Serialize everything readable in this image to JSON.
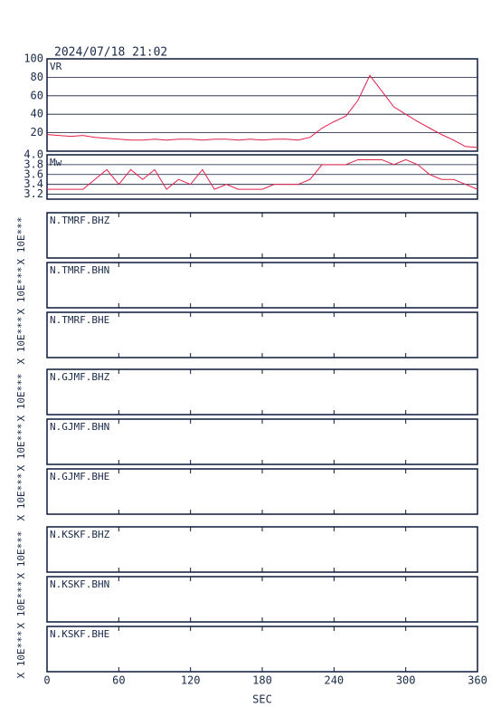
{
  "chart_data": [
    {
      "type": "line",
      "title": "2024/07/18 21:02",
      "label": "VR",
      "x": [
        0,
        10,
        20,
        30,
        40,
        50,
        60,
        70,
        80,
        90,
        100,
        110,
        120,
        130,
        140,
        150,
        160,
        170,
        180,
        190,
        200,
        210,
        220,
        230,
        240,
        250,
        260,
        270,
        280,
        290,
        300,
        310,
        320,
        330,
        340,
        350,
        360
      ],
      "series": [
        {
          "color": "#e0204a",
          "values": [
            18,
            17,
            16,
            17,
            15,
            14,
            13,
            12,
            12,
            13,
            12,
            13,
            13,
            12,
            13,
            13,
            12,
            13,
            12,
            13,
            13,
            12,
            15,
            25,
            32,
            38,
            55,
            82,
            65,
            48,
            40,
            32,
            25,
            18,
            12,
            5,
            4
          ]
        }
      ],
      "xlim": [
        0,
        360
      ],
      "ylim": [
        0,
        100
      ],
      "yticks": [
        20,
        40,
        60,
        80,
        100
      ],
      "grid": true
    },
    {
      "type": "line",
      "label": "Mw",
      "x": [
        0,
        10,
        20,
        30,
        40,
        50,
        60,
        70,
        80,
        90,
        100,
        110,
        120,
        130,
        140,
        150,
        160,
        170,
        180,
        190,
        200,
        210,
        220,
        230,
        240,
        250,
        260,
        270,
        280,
        290,
        300,
        310,
        320,
        330,
        340,
        350,
        360
      ],
      "series": [
        {
          "color": "#e0204a",
          "values": [
            3.3,
            3.3,
            3.3,
            3.3,
            3.5,
            3.7,
            3.4,
            3.7,
            3.5,
            3.7,
            3.3,
            3.5,
            3.4,
            3.7,
            3.3,
            3.4,
            3.3,
            3.3,
            3.3,
            3.4,
            3.4,
            3.4,
            3.5,
            3.8,
            3.8,
            3.8,
            3.9,
            3.9,
            3.9,
            3.8,
            3.9,
            3.8,
            3.6,
            3.5,
            3.5,
            3.4,
            3.3
          ]
        }
      ],
      "xlim": [
        0,
        360
      ],
      "ylim": [
        3.1,
        4.0
      ],
      "yticks": [
        {
          "value": 4.0,
          "label": "4.0"
        },
        3.8,
        3.6,
        3.4,
        3.2
      ],
      "grid": true
    },
    {
      "type": "waveform",
      "label": "N.TMRF.BHZ",
      "ylabel": "X 10E***",
      "xlim": [
        0,
        360
      ],
      "xticks": [
        0,
        60,
        120,
        180,
        240,
        300,
        360
      ]
    },
    {
      "type": "waveform",
      "label": "N.TMRF.BHN",
      "ylabel": "X 10E***",
      "xlim": [
        0,
        360
      ],
      "xticks": [
        0,
        60,
        120,
        180,
        240,
        300,
        360
      ]
    },
    {
      "type": "waveform",
      "label": "N.TMRF.BHE",
      "ylabel": "X 10E***",
      "xlim": [
        0,
        360
      ],
      "xticks": [
        0,
        60,
        120,
        180,
        240,
        300,
        360
      ]
    },
    {
      "type": "waveform",
      "label": "N.GJMF.BHZ",
      "ylabel": "X 10E***",
      "xlim": [
        0,
        360
      ],
      "xticks": [
        0,
        60,
        120,
        180,
        240,
        300,
        360
      ]
    },
    {
      "type": "waveform",
      "label": "N.GJMF.BHN",
      "ylabel": "X 10E***",
      "xlim": [
        0,
        360
      ],
      "xticks": [
        0,
        60,
        120,
        180,
        240,
        300,
        360
      ]
    },
    {
      "type": "waveform",
      "label": "N.GJMF.BHE",
      "ylabel": "X 10E***",
      "xlim": [
        0,
        360
      ],
      "xticks": [
        0,
        60,
        120,
        180,
        240,
        300,
        360
      ]
    },
    {
      "type": "waveform",
      "label": "N.KSKF.BHZ",
      "ylabel": "X 10E***",
      "xlim": [
        0,
        360
      ],
      "xticks": [
        0,
        60,
        120,
        180,
        240,
        300,
        360
      ]
    },
    {
      "type": "waveform",
      "label": "N.KSKF.BHN",
      "ylabel": "X 10E***",
      "xlim": [
        0,
        360
      ],
      "xticks": [
        0,
        60,
        120,
        180,
        240,
        300,
        360
      ]
    },
    {
      "type": "waveform",
      "label": "N.KSKF.BHE",
      "ylabel": "X 10E***",
      "xlabel": "SEC",
      "xlim": [
        0,
        360
      ],
      "xticks": [
        0,
        60,
        120,
        180,
        240,
        300,
        360
      ]
    }
  ]
}
